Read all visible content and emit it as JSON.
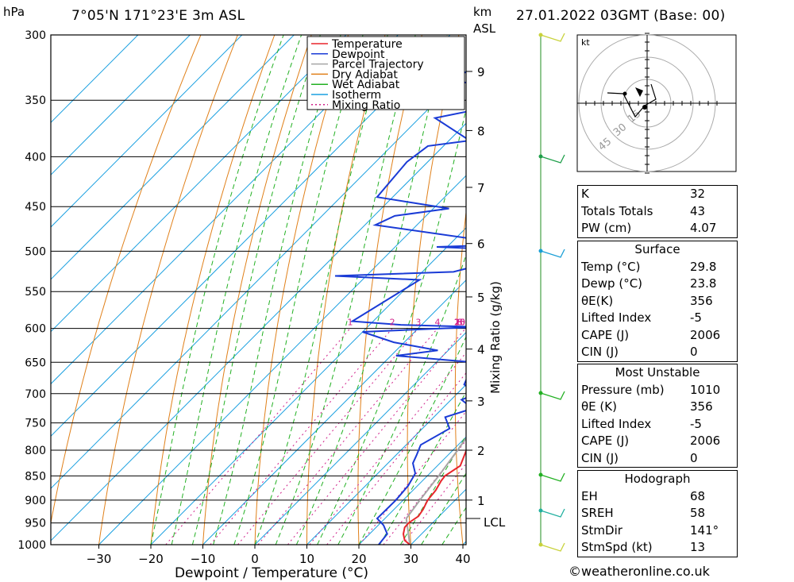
{
  "header": {
    "location": "7°05'N 171°23'E 3m ASL",
    "datetime": "27.01.2022 03GMT (Base: 00)",
    "pressure_unit": "hPa",
    "height_unit_line1": "km",
    "height_unit_line2": "ASL"
  },
  "chart_data": {
    "type": "line",
    "chart_kind": "skew-T log-P sounding",
    "xlabel": "Dewpoint / Temperature (°C)",
    "y_label_left": "hPa",
    "mixing_ratio_axis_label": "Mixing Ratio (g/kg)",
    "x_ticks": [
      -30,
      -20,
      -10,
      0,
      10,
      20,
      30,
      40
    ],
    "y_ticks": [
      300,
      350,
      400,
      450,
      500,
      550,
      600,
      650,
      700,
      750,
      800,
      850,
      900,
      950,
      1000
    ],
    "height_ticks_km": [
      "1",
      "2",
      "3",
      "4",
      "5",
      "6",
      "7",
      "8",
      "9"
    ],
    "height_ticks_pressure": [
      900,
      800,
      712,
      630,
      557,
      491,
      430,
      376,
      327
    ],
    "lcl_label": "LCL",
    "lcl_pressure": 940,
    "mixing_ratio_labels": [
      "1",
      "2",
      "3",
      "4",
      "6",
      "8",
      "10",
      "15",
      "20",
      "25"
    ],
    "mixing_ratio_values": [
      1,
      2,
      3,
      4,
      6,
      8,
      10,
      15,
      20,
      25
    ],
    "legend": [
      "Temperature",
      "Dewpoint",
      "Parcel Trajectory",
      "Dry Adiabat",
      "Wet Adiabat",
      "Isotherm",
      "Mixing Ratio"
    ],
    "colors": {
      "temperature": "#e8252b",
      "dewpoint": "#1a3bd6",
      "parcel": "#a6a6a6",
      "dry_adiabat": "#e0801a",
      "wet_adiabat": "#22b022",
      "isotherm": "#1aa0e0",
      "mixing_ratio": "#d0208a"
    },
    "series": [
      {
        "name": "Temperature",
        "points": [
          [
            1000,
            29.8
          ],
          [
            990,
            28.0
          ],
          [
            975,
            26.5
          ],
          [
            960,
            25.5
          ],
          [
            950,
            25.4
          ],
          [
            935,
            26.0
          ],
          [
            920,
            25.6
          ],
          [
            900,
            24.7
          ],
          [
            880,
            24.4
          ],
          [
            860,
            23.6
          ],
          [
            850,
            23.4
          ],
          [
            830,
            24.4
          ],
          [
            800,
            22.6
          ],
          [
            775,
            21.6
          ],
          [
            750,
            19.8
          ],
          [
            725,
            17.8
          ],
          [
            700,
            16.4
          ],
          [
            675,
            15.4
          ],
          [
            650,
            12.8
          ],
          [
            630,
            11.2
          ],
          [
            610,
            10.0
          ],
          [
            600,
            9.8
          ],
          [
            580,
            8.2
          ],
          [
            560,
            6.4
          ],
          [
            540,
            4.6
          ],
          [
            520,
            2.8
          ],
          [
            505,
            1.4
          ],
          [
            500,
            1.0
          ],
          [
            490,
            0.2
          ],
          [
            475,
            -1.0
          ],
          [
            460,
            -2.8
          ],
          [
            450,
            -4.0
          ],
          [
            430,
            -6.0
          ],
          [
            410,
            -9.4
          ],
          [
            400,
            -11.0
          ],
          [
            380,
            -14.6
          ],
          [
            365,
            -17.4
          ]
        ]
      },
      {
        "name": "Dewpoint",
        "points": [
          [
            1000,
            23.8
          ],
          [
            975,
            23.4
          ],
          [
            955,
            21.0
          ],
          [
            940,
            18.5
          ],
          [
            900,
            18.6
          ],
          [
            870,
            18.2
          ],
          [
            845,
            17.2
          ],
          [
            825,
            14.8
          ],
          [
            810,
            14.0
          ],
          [
            790,
            12.8
          ],
          [
            760,
            15.2
          ],
          [
            740,
            12.2
          ],
          [
            725,
            15.8
          ],
          [
            710,
            12.0
          ],
          [
            700,
            13.8
          ],
          [
            685,
            9.6
          ],
          [
            650,
            7.2
          ],
          [
            640,
            -9.0
          ],
          [
            632,
            -2.0
          ],
          [
            620,
            -12.0
          ],
          [
            605,
            -20.0
          ],
          [
            598,
            1.0
          ],
          [
            595,
            -14.0
          ],
          [
            590,
            -24.0
          ],
          [
            535,
            -19.0
          ],
          [
            530,
            -36.0
          ],
          [
            525,
            -14.0
          ],
          [
            505,
            -5.0
          ],
          [
            500,
            0.0
          ],
          [
            495,
            -22.0
          ],
          [
            492,
            -8.0
          ],
          [
            470,
            -38.0
          ],
          [
            460,
            -36.0
          ],
          [
            452,
            -27.0
          ],
          [
            440,
            -43.0
          ],
          [
            405,
            -44.0
          ],
          [
            390,
            -43.0
          ],
          [
            385,
            -36.0
          ],
          [
            365,
            -47.0
          ],
          [
            355,
            -38.0
          ],
          [
            340,
            -42.0
          ],
          [
            330,
            -56.0
          ],
          [
            325,
            -42.0
          ],
          [
            310,
            -36.0
          ],
          [
            300,
            -33.0
          ]
        ]
      },
      {
        "name": "Parcel Trajectory",
        "points": [
          [
            1000,
            29.8
          ],
          [
            940,
            24.1
          ],
          [
            900,
            23.2
          ],
          [
            850,
            22.2
          ],
          [
            800,
            20.9
          ],
          [
            750,
            19.4
          ],
          [
            700,
            17.6
          ],
          [
            650,
            15.6
          ],
          [
            600,
            13.3
          ],
          [
            550,
            10.6
          ],
          [
            500,
            7.3
          ],
          [
            450,
            3.3
          ],
          [
            400,
            -1.5
          ],
          [
            370,
            -5.0
          ]
        ]
      }
    ]
  },
  "hodograph": {
    "unit_label": "kt",
    "ring_labels": [
      "15",
      "30",
      "45"
    ]
  },
  "indices_panel": {
    "rows": [
      {
        "label": "K",
        "value": "32"
      },
      {
        "label": "Totals Totals",
        "value": "43"
      },
      {
        "label": "PW (cm)",
        "value": "4.07"
      }
    ]
  },
  "surface_panel": {
    "title": "Surface",
    "rows": [
      {
        "label": "Temp (°C)",
        "value": "29.8"
      },
      {
        "label": "Dewp (°C)",
        "value": "23.8"
      },
      {
        "label": "θE(K)",
        "value": "356"
      },
      {
        "label": "Lifted Index",
        "value": "-5"
      },
      {
        "label": "CAPE (J)",
        "value": "2006"
      },
      {
        "label": "CIN (J)",
        "value": "0"
      }
    ]
  },
  "most_unstable_panel": {
    "title": "Most Unstable",
    "rows": [
      {
        "label": "Pressure (mb)",
        "value": "1010"
      },
      {
        "label": "θE (K)",
        "value": "356"
      },
      {
        "label": "Lifted Index",
        "value": "-5"
      },
      {
        "label": "CAPE (J)",
        "value": "2006"
      },
      {
        "label": "CIN (J)",
        "value": "0"
      }
    ]
  },
  "hodograph_panel": {
    "title": "Hodograph",
    "rows": [
      {
        "label": "EH",
        "value": "68"
      },
      {
        "label": "SREH",
        "value": "58"
      },
      {
        "label": "StmDir",
        "value": "141°"
      },
      {
        "label": "StmSpd (kt)",
        "value": "13"
      }
    ]
  },
  "footer": "©weatheronline.co.uk"
}
